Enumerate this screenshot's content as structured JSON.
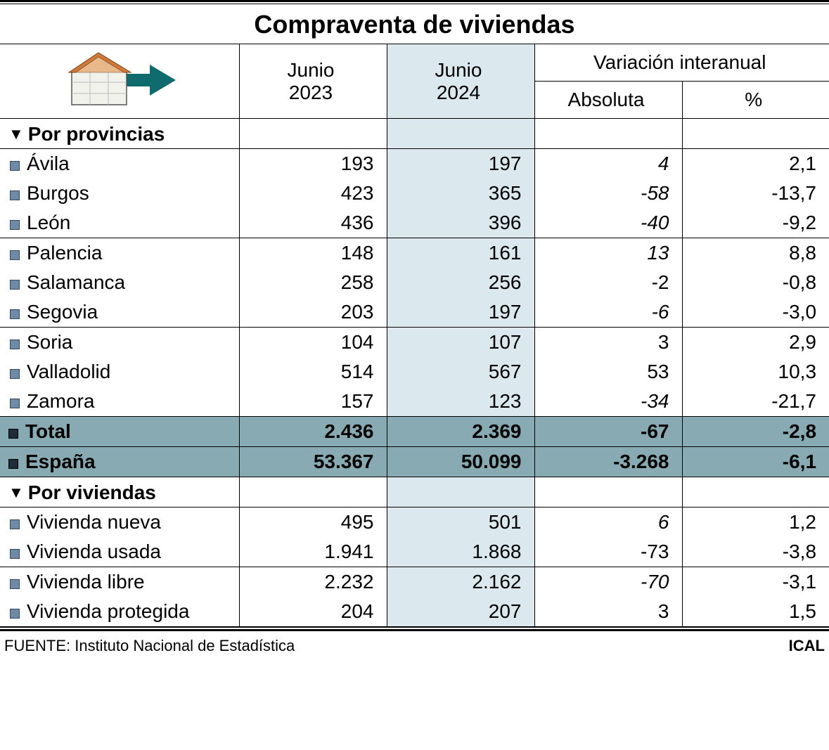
{
  "title": "Compraventa de viviendas",
  "colors": {
    "highlight_bg": "#dbe9ee",
    "total_bg": "#88aab3",
    "bullet_fill": "#6f8aa6",
    "bullet_dark": "#1f2d3a",
    "arrow_fill": "#0f6b6e",
    "roof_fill": "#d07a3a",
    "wall_fill": "#f2f2ec",
    "wall_stroke": "#555555"
  },
  "header": {
    "col1": "Junio\n2023",
    "col1_line1": "Junio",
    "col1_line2": "2023",
    "col2_line1": "Junio",
    "col2_line2": "2024",
    "var_title": "Variación interanual",
    "var_abs": "Absoluta",
    "var_pct": "%"
  },
  "sections": {
    "provincias": "Por provincias",
    "viviendas": "Por viviendas"
  },
  "provincias": [
    {
      "name": "Ávila",
      "v2023": "193",
      "v2024": "197",
      "abs": "4",
      "pct": "2,1",
      "abs_italic": true,
      "group_end": false
    },
    {
      "name": "Burgos",
      "v2023": "423",
      "v2024": "365",
      "abs": "-58",
      "pct": "-13,7",
      "abs_italic": true,
      "group_end": false
    },
    {
      "name": "León",
      "v2023": "436",
      "v2024": "396",
      "abs": "-40",
      "pct": "-9,2",
      "abs_italic": true,
      "group_end": true
    },
    {
      "name": "Palencia",
      "v2023": "148",
      "v2024": "161",
      "abs": "13",
      "pct": "8,8",
      "abs_italic": true,
      "group_end": false
    },
    {
      "name": "Salamanca",
      "v2023": "258",
      "v2024": "256",
      "abs": "-2",
      "pct": "-0,8",
      "abs_italic": false,
      "group_end": false
    },
    {
      "name": "Segovia",
      "v2023": "203",
      "v2024": "197",
      "abs": "-6",
      "pct": "-3,0",
      "abs_italic": true,
      "group_end": true
    },
    {
      "name": "Soria",
      "v2023": "104",
      "v2024": "107",
      "abs": "3",
      "pct": "2,9",
      "abs_italic": false,
      "group_end": false
    },
    {
      "name": "Valladolid",
      "v2023": "514",
      "v2024": "567",
      "abs": "53",
      "pct": "10,3",
      "abs_italic": false,
      "group_end": false
    },
    {
      "name": "Zamora",
      "v2023": "157",
      "v2024": "123",
      "abs": "-34",
      "pct": "-21,7",
      "abs_italic": true,
      "group_end": false
    }
  ],
  "totals": [
    {
      "name": "Total",
      "v2023": "2.436",
      "v2024": "2.369",
      "abs": "-67",
      "pct": "-2,8"
    },
    {
      "name": "España",
      "v2023": "53.367",
      "v2024": "50.099",
      "abs": "-3.268",
      "pct": "-6,1"
    }
  ],
  "viviendas": [
    {
      "name": "Vivienda nueva",
      "v2023": "495",
      "v2024": "501",
      "abs": "6",
      "pct": "1,2",
      "abs_italic": true,
      "group_end": false
    },
    {
      "name": "Vivienda usada",
      "v2023": "1.941",
      "v2024": "1.868",
      "abs": "-73",
      "pct": "-3,8",
      "abs_italic": false,
      "group_end": true
    },
    {
      "name": "Vivienda libre",
      "v2023": "2.232",
      "v2024": "2.162",
      "abs": "-70",
      "pct": "-3,1",
      "abs_italic": true,
      "group_end": false
    },
    {
      "name": "Vivienda protegida",
      "v2023": "204",
      "v2024": "207",
      "abs": "3",
      "pct": "1,5",
      "abs_italic": false,
      "group_end": false
    }
  ],
  "footer": {
    "source": "FUENTE: Instituto Nacional de Estadística",
    "brand": "ICAL"
  }
}
